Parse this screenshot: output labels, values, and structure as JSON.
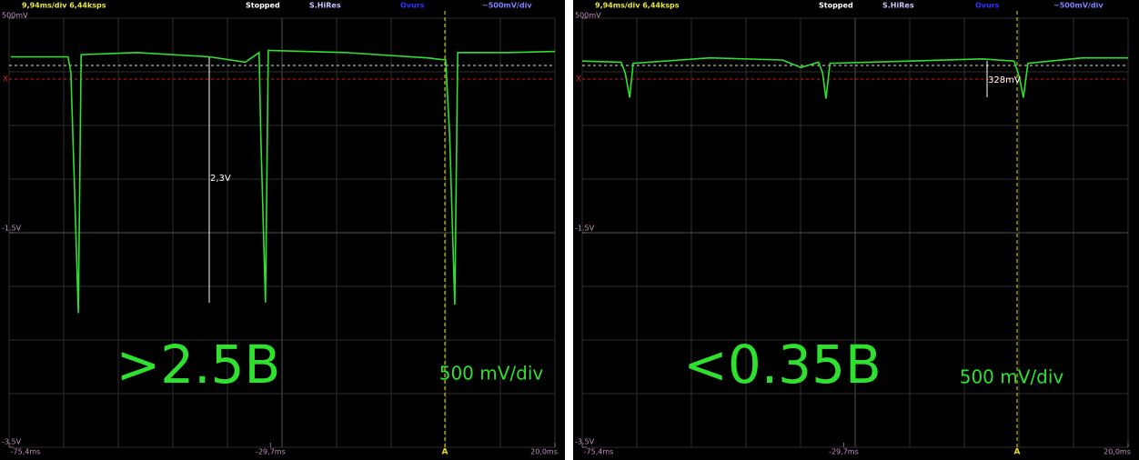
{
  "chart_data": [
    {
      "type": "line",
      "header": [
        "9,94ms/div 6,44ksps",
        "Stopped",
        "S.HiRes",
        "Ovurs",
        "~500mV/div"
      ],
      "annotations": [
        ">2.5B",
        "500 mV/div",
        "2,3V"
      ],
      "markers": [
        "X",
        "A"
      ],
      "xlim": [
        -75.4,
        20.0
      ],
      "xticks": [
        {
          "value": -75.4,
          "label": "-75,4ms"
        },
        {
          "value": -29.7,
          "label": "-29,7ms"
        },
        {
          "value": 20.0,
          "label": "20,0ms"
        }
      ],
      "ylim": [
        -3.5,
        0.5
      ],
      "yticks": [
        {
          "value": 0.5,
          "label": "500mV"
        },
        {
          "value": -1.5,
          "label": "-1.5V"
        },
        {
          "value": -3.5,
          "label": "-3.5V"
        }
      ],
      "grid": true,
      "color": "#2fe02f",
      "x": [
        -75.1,
        -65.9,
        -65.1,
        -64.6,
        -63.9,
        -63.3,
        -62.8,
        -53.1,
        -40.4,
        -34.1,
        -31.7,
        -31.4,
        -30.6,
        -30.1,
        -16.6,
        -2.3,
        0.9,
        1.6,
        2.5,
        3.0,
        12.1,
        20.0
      ],
      "values": [
        0.14,
        0.14,
        0.14,
        -0.01,
        -1.19,
        -2.25,
        0.16,
        0.18,
        0.14,
        0.09,
        0.18,
        -0.6,
        -2.15,
        0.2,
        0.18,
        0.13,
        0.11,
        -0.6,
        -2.17,
        0.18,
        0.18,
        0.19
      ]
    },
    {
      "type": "line",
      "header": [
        "9,94ms/div 6,44ksps",
        "Stopped",
        "S.HiRes",
        "Ovurs",
        "~500mV/div"
      ],
      "annotations": [
        "<0.35B",
        "500 mV/div",
        "328mV"
      ],
      "markers": [
        "X",
        "A"
      ],
      "xlim": [
        -75.4,
        20.0
      ],
      "xticks": [
        {
          "value": -75.4,
          "label": "-75,4ms"
        },
        {
          "value": -29.7,
          "label": "-29,7ms"
        },
        {
          "value": 20.0,
          "label": "20,0ms"
        }
      ],
      "ylim": [
        -3.5,
        0.5
      ],
      "yticks": [
        {
          "value": 0.5,
          "label": "500mV"
        },
        {
          "value": -1.5,
          "label": "-1.5V"
        },
        {
          "value": -3.5,
          "label": "-3.5V"
        }
      ],
      "grid": true,
      "color": "#2fe02f",
      "x": [
        -75.4,
        -68.6,
        -67.9,
        -67.1,
        -66.5,
        -53.1,
        -40.4,
        -37.2,
        -34.1,
        -33.4,
        -32.8,
        -32.1,
        -18.2,
        -5.5,
        0.1,
        1.0,
        1.7,
        2.5,
        12.0,
        20.0
      ],
      "values": [
        0.1,
        0.09,
        -0.01,
        -0.24,
        0.08,
        0.13,
        0.11,
        0.04,
        0.09,
        -0.01,
        -0.25,
        0.08,
        0.1,
        0.12,
        0.1,
        -0.05,
        -0.24,
        0.08,
        0.13,
        0.13
      ]
    }
  ]
}
